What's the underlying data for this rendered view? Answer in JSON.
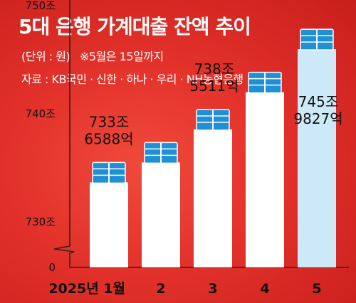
{
  "title": "5대 은행 가계대출 잔액 추이",
  "unit_note": "(단위 : 원)",
  "footnote": "※5월은 15일까지",
  "source": "자료 : KB국민 · 신한 · 하나 · 우리 · NH농협은행",
  "colors": {
    "background": "#e2312a",
    "bar": "#ffffff",
    "bar_highlight": "#cde9f8",
    "icon": "#1f8fd6"
  },
  "chart_data": {
    "type": "bar",
    "categories": [
      "2025년 1월",
      "2",
      "3",
      "4",
      "5"
    ],
    "values": [
      733.6588,
      735.5,
      738.5511,
      742.0,
      745.9827
    ],
    "value_labels": [
      [
        "733조",
        "6588억"
      ],
      null,
      [
        "738조",
        "5511억"
      ],
      null,
      [
        "745조",
        "9827억"
      ]
    ],
    "highlight_index": 4,
    "yticks": [
      {
        "value": 0,
        "label": "0"
      },
      {
        "value": 730,
        "label": "730조"
      },
      {
        "value": 740,
        "label": "740조"
      },
      {
        "value": 750,
        "label": "750조"
      }
    ],
    "ylim": [
      728,
      751
    ],
    "axis_break": true,
    "unit": "원"
  }
}
